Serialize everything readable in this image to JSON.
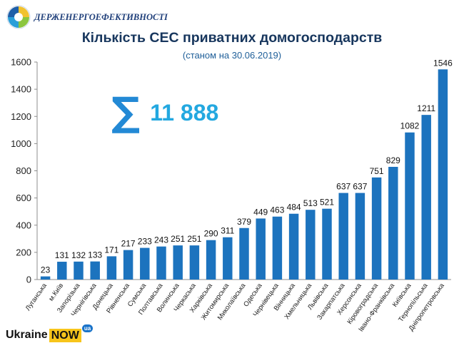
{
  "header": {
    "org_name": "ДЕРЖЕНЕРГОЕФЕКТИВНОСТІ"
  },
  "summary": {
    "icon": "sigma-icon",
    "value": "11 888"
  },
  "colors": {
    "bar": "#1c73be",
    "title": "#17365d",
    "subtitle": "#1f5f99",
    "sum": "#23a8e0",
    "sigma": "#2389d5"
  },
  "chart_data": {
    "type": "bar",
    "title": "Кількість СЕС приватних домогосподарств",
    "subtitle": "(станом на 30.06.2019)",
    "xlabel": "",
    "ylabel": "",
    "ylim": [
      0,
      1600
    ],
    "yticks": [
      0,
      200,
      400,
      600,
      800,
      1000,
      1200,
      1400,
      1600
    ],
    "grid": false,
    "legend": "none",
    "categories": [
      "Луганська",
      "м.Київ",
      "Запорізька",
      "Чернігівська",
      "Донецька",
      "Рівненська",
      "Сумська",
      "Полтавська",
      "Волинська",
      "Черкаська",
      "Харківська",
      "Житомирська",
      "Миколаївська",
      "Одеська",
      "Чернівецька",
      "Вінницька",
      "Хмельницька",
      "Львівська",
      "Закарпатська",
      "Херсонська",
      "Кіровоградська",
      "Івано-Франківська",
      "Київська",
      "Тернопільська",
      "Дніпропетровська"
    ],
    "values": [
      23,
      131,
      132,
      133,
      171,
      217,
      233,
      243,
      251,
      251,
      290,
      311,
      379,
      449,
      463,
      484,
      513,
      521,
      637,
      637,
      751,
      829,
      1082,
      1211,
      1546
    ]
  },
  "footer": {
    "brand_main": "Ukraine",
    "brand_now": "NOW",
    "brand_ua": "ua"
  }
}
